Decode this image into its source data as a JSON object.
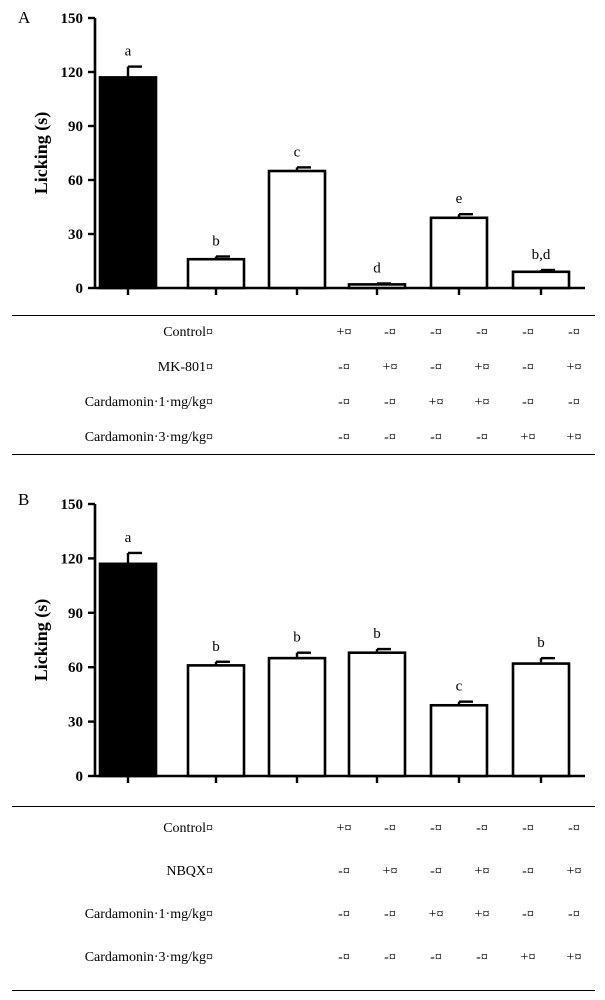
{
  "figure": {
    "panel_a_letter": "A",
    "panel_b_letter": "B"
  },
  "chart_data": [
    {
      "panel": "A",
      "type": "bar",
      "ylabel": "Licking (s)",
      "xlabel": "",
      "ylim": [
        0,
        150
      ],
      "yticks": [
        0,
        30,
        60,
        90,
        120,
        150
      ],
      "categories": [
        "Control",
        "MK-801",
        "Cardamonin 1 mg/kg",
        "MK-801 + Cardamonin 1 mg/kg",
        "Cardamonin 3 mg/kg",
        "MK-801 + Cardamonin 3 mg/kg"
      ],
      "values": [
        117,
        16,
        65,
        2,
        39,
        9
      ],
      "errors": [
        6,
        1.5,
        2,
        0.5,
        2,
        1
      ],
      "fills": [
        "#000000",
        "#ffffff",
        "#ffffff",
        "#ffffff",
        "#ffffff",
        "#ffffff"
      ],
      "significance": [
        "a",
        "b",
        "c",
        "d",
        "e",
        "b,d"
      ],
      "table": {
        "rows": [
          {
            "label": "Control¤",
            "cells": [
              "+¤",
              "-¤",
              "-¤",
              "-¤",
              "-¤",
              "-¤"
            ]
          },
          {
            "label": "MK-801¤",
            "cells": [
              "-¤",
              "+¤",
              "-¤",
              "+¤",
              "-¤",
              "+¤"
            ]
          },
          {
            "label": "Cardamonin·1·mg/kg¤",
            "cells": [
              "-¤",
              "-¤",
              "+¤",
              "+¤",
              "-¤",
              "-¤"
            ]
          },
          {
            "label": "Cardamonin·3·mg/kg¤",
            "cells": [
              "-¤",
              "-¤",
              "-¤",
              "-¤",
              "+¤",
              "+¤"
            ]
          }
        ]
      }
    },
    {
      "panel": "B",
      "type": "bar",
      "ylabel": "Licking (s)",
      "xlabel": "",
      "ylim": [
        0,
        150
      ],
      "yticks": [
        0,
        30,
        60,
        90,
        120,
        150
      ],
      "categories": [
        "Control",
        "NBQX",
        "Cardamonin 1 mg/kg",
        "NBQX + Cardamonin 1 mg/kg",
        "Cardamonin 3 mg/kg",
        "NBQX + Cardamonin 3 mg/kg"
      ],
      "values": [
        117,
        61,
        65,
        68,
        39,
        62
      ],
      "errors": [
        6,
        2,
        3,
        2,
        2,
        3
      ],
      "fills": [
        "#000000",
        "#ffffff",
        "#ffffff",
        "#ffffff",
        "#ffffff",
        "#ffffff"
      ],
      "significance": [
        "a",
        "b",
        "b",
        "b",
        "c",
        "b"
      ],
      "table": {
        "rows": [
          {
            "label": "Control¤",
            "cells": [
              "+¤",
              "-¤",
              "-¤",
              "-¤",
              "-¤",
              "-¤"
            ]
          },
          {
            "label": "NBQX¤",
            "cells": [
              "-¤",
              "+¤",
              "-¤",
              "+¤",
              "-¤",
              "+¤"
            ]
          },
          {
            "label": "Cardamonin·1·mg/kg¤",
            "cells": [
              "-¤",
              "-¤",
              "+¤",
              "+¤",
              "-¤",
              "-¤"
            ]
          },
          {
            "label": "Cardamonin·3·mg/kg¤",
            "cells": [
              "-¤",
              "-¤",
              "-¤",
              "-¤",
              "+¤",
              "+¤"
            ]
          }
        ]
      }
    }
  ]
}
